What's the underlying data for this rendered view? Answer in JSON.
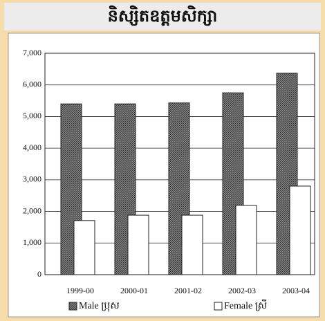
{
  "chart_data": {
    "type": "bar",
    "title": "និស្សិតឧត្តមសិក្សា",
    "categories": [
      "1999-00",
      "2000-01",
      "2001-02",
      "2002-03",
      "2003-04"
    ],
    "series": [
      {
        "name": "Male ប្រុស",
        "color": "#6e6e6e",
        "values": [
          5400,
          5400,
          5430,
          5750,
          6370
        ]
      },
      {
        "name": "Female ស្រី",
        "color": "#ffffff",
        "values": [
          1710,
          1880,
          1880,
          2190,
          2800
        ]
      }
    ],
    "ylim": [
      0,
      7000
    ],
    "yticks": [
      0,
      {
        "value": 1000,
        "label": "1,000"
      },
      {
        "value": 2000,
        "label": "2,000"
      },
      {
        "value": 3000,
        "label": "3,000"
      },
      {
        "value": 4000,
        "label": "4,000"
      },
      {
        "value": 5000,
        "label": "5,000"
      },
      {
        "value": 6000,
        "label": "6,000"
      },
      {
        "value": 7000,
        "label": "7,000"
      }
    ],
    "grid": true
  }
}
